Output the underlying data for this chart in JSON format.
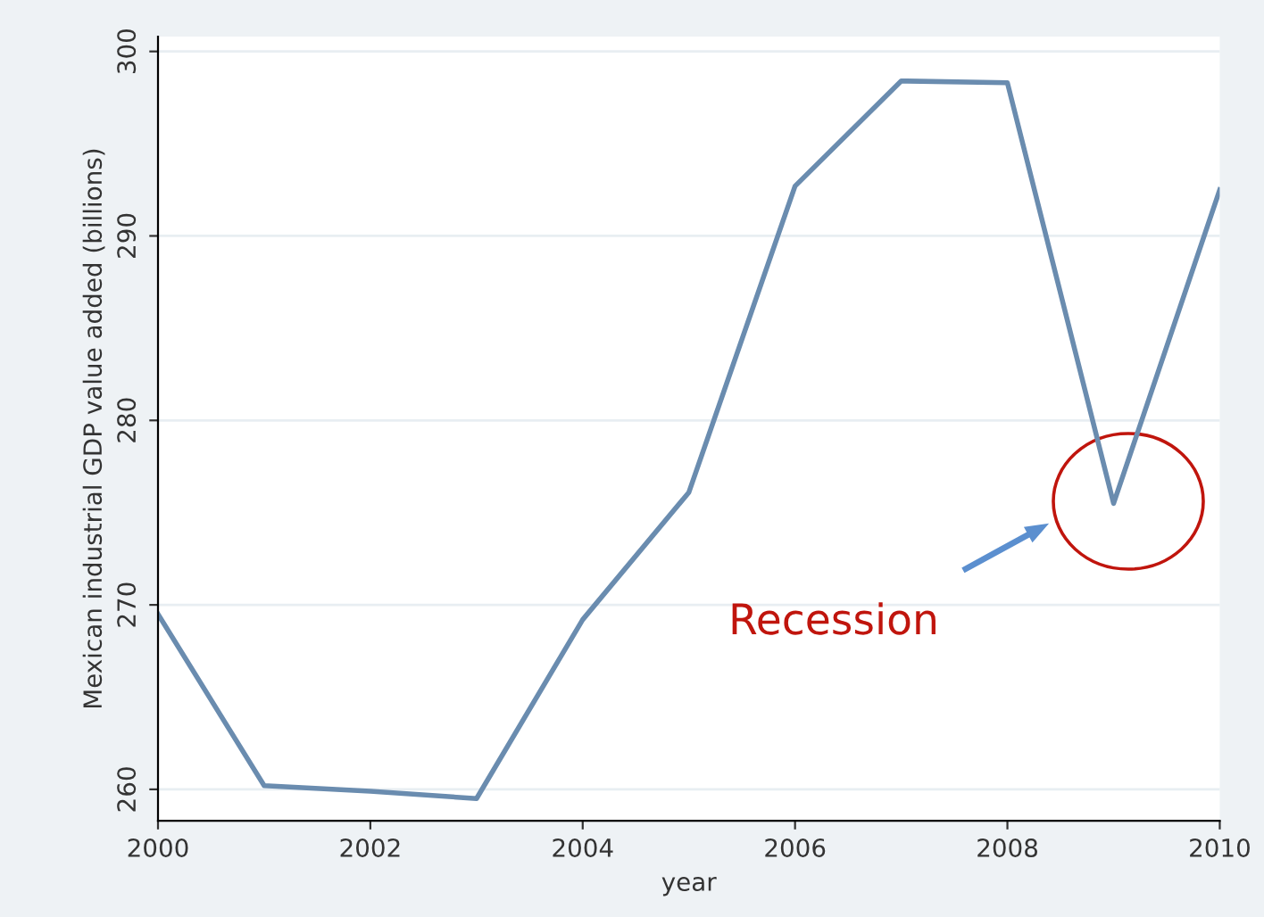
{
  "chart_data": {
    "type": "line",
    "xlabel": "year",
    "ylabel": "Mexican industrial GDP value added (billions)",
    "x": [
      2000,
      2001,
      2002,
      2003,
      2004,
      2005,
      2006,
      2007,
      2008,
      2009,
      2010
    ],
    "series": [
      {
        "color": "#6a8caf",
        "values": [
          269.5,
          260.2,
          259.9,
          259.5,
          269.2,
          276.1,
          292.7,
          298.4,
          298.3,
          275.5,
          292.5
        ]
      }
    ],
    "xlim": [
      2000,
      2010
    ],
    "xticks": [
      2000,
      2002,
      2004,
      2006,
      2008,
      2010
    ],
    "ylim": [
      258.3,
      300.8
    ],
    "yticks": [
      260,
      270,
      280,
      290,
      300
    ],
    "grid": "y",
    "legend": false,
    "marker": "none",
    "line_style": "solid",
    "annotations": [
      "Recession"
    ]
  }
}
